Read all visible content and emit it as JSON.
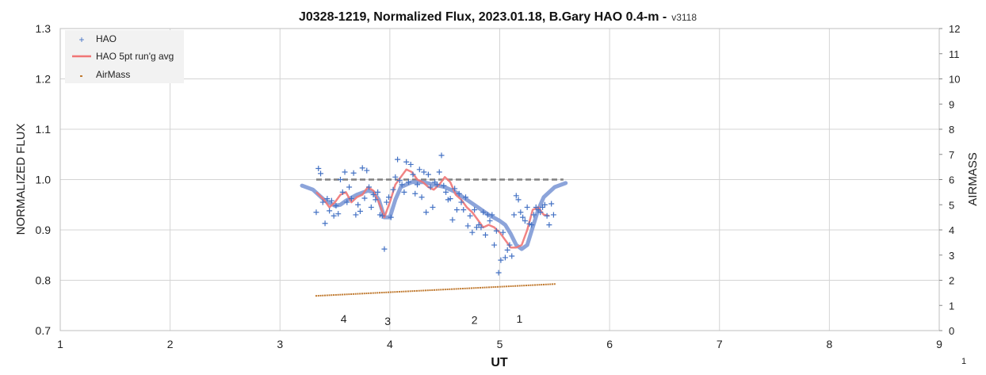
{
  "chart_data": {
    "type": "scatter",
    "title": "J0328-1219, Normalized Flux, 2023.01.18, B.Gary HAO 0.4-m -",
    "version_label": "v3118",
    "xlabel": "UT",
    "ylabel": "NORMALIZED FLUX",
    "y2label": "AIRMASS",
    "xlim": [
      1,
      9
    ],
    "ylim": [
      0.7,
      1.3
    ],
    "y2lim": [
      0,
      12
    ],
    "x_ticks": [
      "1",
      "2",
      "3",
      "4",
      "5",
      "6",
      "7",
      "8",
      "9"
    ],
    "y_ticks": [
      "0.7",
      "0.8",
      "0.9",
      "1.0",
      "1.1",
      "1.2",
      "1.3"
    ],
    "y2_ticks": [
      "0",
      "1",
      "2",
      "3",
      "4",
      "5",
      "6",
      "7",
      "8",
      "9",
      "10",
      "11",
      "12"
    ],
    "grid": true,
    "legend_position": "top-left",
    "legend": [
      "HAO",
      "HAO 5pt run'g avg",
      "AirMass"
    ],
    "colors": {
      "hao": "#4472c4",
      "avg": "#f07575",
      "model": "#7f9ad6",
      "airmass": "#c07a30",
      "baseline": "#808080",
      "grid": "#d4d4d4"
    },
    "series": [
      {
        "name": "HAO",
        "x": [
          3.33,
          3.35,
          3.37,
          3.39,
          3.41,
          3.43,
          3.45,
          3.47,
          3.49,
          3.51,
          3.53,
          3.55,
          3.57,
          3.59,
          3.61,
          3.63,
          3.65,
          3.67,
          3.69,
          3.71,
          3.73,
          3.75,
          3.77,
          3.79,
          3.81,
          3.83,
          3.85,
          3.87,
          3.89,
          3.91,
          3.93,
          3.95,
          3.97,
          3.99,
          4.01,
          4.03,
          4.05,
          4.07,
          4.09,
          4.11,
          4.13,
          4.15,
          4.17,
          4.19,
          4.21,
          4.23,
          4.25,
          4.27,
          4.29,
          4.31,
          4.33,
          4.35,
          4.37,
          4.39,
          4.41,
          4.43,
          4.45,
          4.47,
          4.49,
          4.51,
          4.53,
          4.55,
          4.57,
          4.59,
          4.61,
          4.63,
          4.65,
          4.67,
          4.69,
          4.71,
          4.73,
          4.75,
          4.77,
          4.79,
          4.81,
          4.83,
          4.85,
          4.87,
          4.89,
          4.91,
          4.93,
          4.95,
          4.97,
          4.99,
          5.01,
          5.03,
          5.05,
          5.07,
          5.09,
          5.11,
          5.13,
          5.15,
          5.17,
          5.19,
          5.21,
          5.23,
          5.25,
          5.27,
          5.29,
          5.31,
          5.33,
          5.35,
          5.37,
          5.39,
          5.41,
          5.43,
          5.45,
          5.47,
          5.49
        ],
        "y": [
          0.935,
          1.022,
          1.012,
          0.955,
          0.913,
          0.962,
          0.938,
          0.958,
          0.928,
          0.948,
          0.932,
          1.0,
          0.975,
          1.015,
          0.955,
          0.985,
          0.962,
          1.013,
          0.93,
          0.95,
          0.937,
          1.023,
          0.963,
          1.018,
          0.985,
          0.945,
          0.97,
          0.96,
          0.975,
          0.93,
          0.928,
          0.862,
          0.955,
          0.965,
          0.925,
          0.98,
          1.005,
          1.04,
          0.998,
          0.99,
          0.975,
          1.035,
          0.995,
          1.03,
          1.01,
          0.972,
          0.99,
          1.02,
          0.965,
          1.015,
          0.935,
          1.01,
          0.985,
          0.945,
          0.995,
          0.99,
          1.015,
          1.048,
          0.988,
          0.975,
          0.96,
          0.962,
          0.92,
          0.982,
          0.94,
          0.972,
          0.955,
          0.94,
          0.965,
          0.908,
          0.928,
          0.895,
          0.94,
          0.905,
          0.91,
          0.905,
          0.935,
          0.89,
          0.93,
          0.918,
          0.93,
          0.87,
          0.898,
          0.815,
          0.84,
          0.895,
          0.845,
          0.86,
          0.87,
          0.848,
          0.93,
          0.968,
          0.96,
          0.935,
          0.925,
          0.918,
          0.945,
          0.912,
          0.91,
          0.93,
          0.945,
          0.94,
          0.935,
          0.945,
          0.95,
          0.928,
          0.91,
          0.952,
          0.93
        ]
      },
      {
        "name": "HAO 5pt run'g avg",
        "x": [
          3.33,
          3.4,
          3.45,
          3.5,
          3.55,
          3.6,
          3.65,
          3.7,
          3.75,
          3.8,
          3.85,
          3.9,
          3.95,
          4.0,
          4.05,
          4.1,
          4.15,
          4.2,
          4.25,
          4.3,
          4.35,
          4.4,
          4.45,
          4.5,
          4.55,
          4.6,
          4.65,
          4.7,
          4.75,
          4.8,
          4.85,
          4.9,
          4.95,
          5.0,
          5.05,
          5.1,
          5.15,
          5.2,
          5.25,
          5.3,
          5.35,
          5.4,
          5.45
        ],
        "y": [
          0.975,
          0.96,
          0.945,
          0.955,
          0.97,
          0.975,
          0.955,
          0.965,
          0.97,
          0.985,
          0.978,
          0.955,
          0.925,
          0.955,
          0.99,
          1.005,
          1.02,
          1.015,
          1.0,
          0.995,
          0.985,
          0.98,
          0.99,
          1.005,
          0.995,
          0.97,
          0.96,
          0.945,
          0.935,
          0.92,
          0.905,
          0.91,
          0.905,
          0.895,
          0.88,
          0.865,
          0.865,
          0.87,
          0.9,
          0.94,
          0.945,
          0.93,
          0.928
        ]
      },
      {
        "name": "model",
        "x": [
          3.2,
          3.3,
          3.4,
          3.5,
          3.55,
          3.6,
          3.7,
          3.8,
          3.85,
          3.9,
          3.95,
          4.0,
          4.05,
          4.1,
          4.2,
          4.3,
          4.4,
          4.5,
          4.6,
          4.7,
          4.8,
          4.9,
          5.0,
          5.05,
          5.1,
          5.15,
          5.2,
          5.25,
          5.3,
          5.35,
          5.4,
          5.5,
          5.6
        ],
        "y": [
          0.988,
          0.98,
          0.96,
          0.948,
          0.95,
          0.958,
          0.97,
          0.978,
          0.975,
          0.96,
          0.925,
          0.925,
          0.96,
          0.985,
          0.995,
          0.995,
          0.99,
          0.985,
          0.975,
          0.96,
          0.945,
          0.93,
          0.918,
          0.91,
          0.892,
          0.87,
          0.862,
          0.87,
          0.905,
          0.94,
          0.965,
          0.985,
          0.993
        ]
      },
      {
        "name": "AirMass",
        "x_start": 3.33,
        "x_end": 5.5,
        "y_start": 1.38,
        "y_end": 1.85,
        "count": 110
      }
    ],
    "baseline": {
      "y": 1.0,
      "x_start": 3.33,
      "x_end": 5.58
    },
    "annotations": [
      {
        "text": "4",
        "x": 3.58,
        "y": 0.724
      },
      {
        "text": "3",
        "x": 3.98,
        "y": 0.719
      },
      {
        "text": "2",
        "x": 4.77,
        "y": 0.721
      },
      {
        "text": "1",
        "x": 5.18,
        "y": 0.724
      }
    ],
    "page_number": "1"
  }
}
